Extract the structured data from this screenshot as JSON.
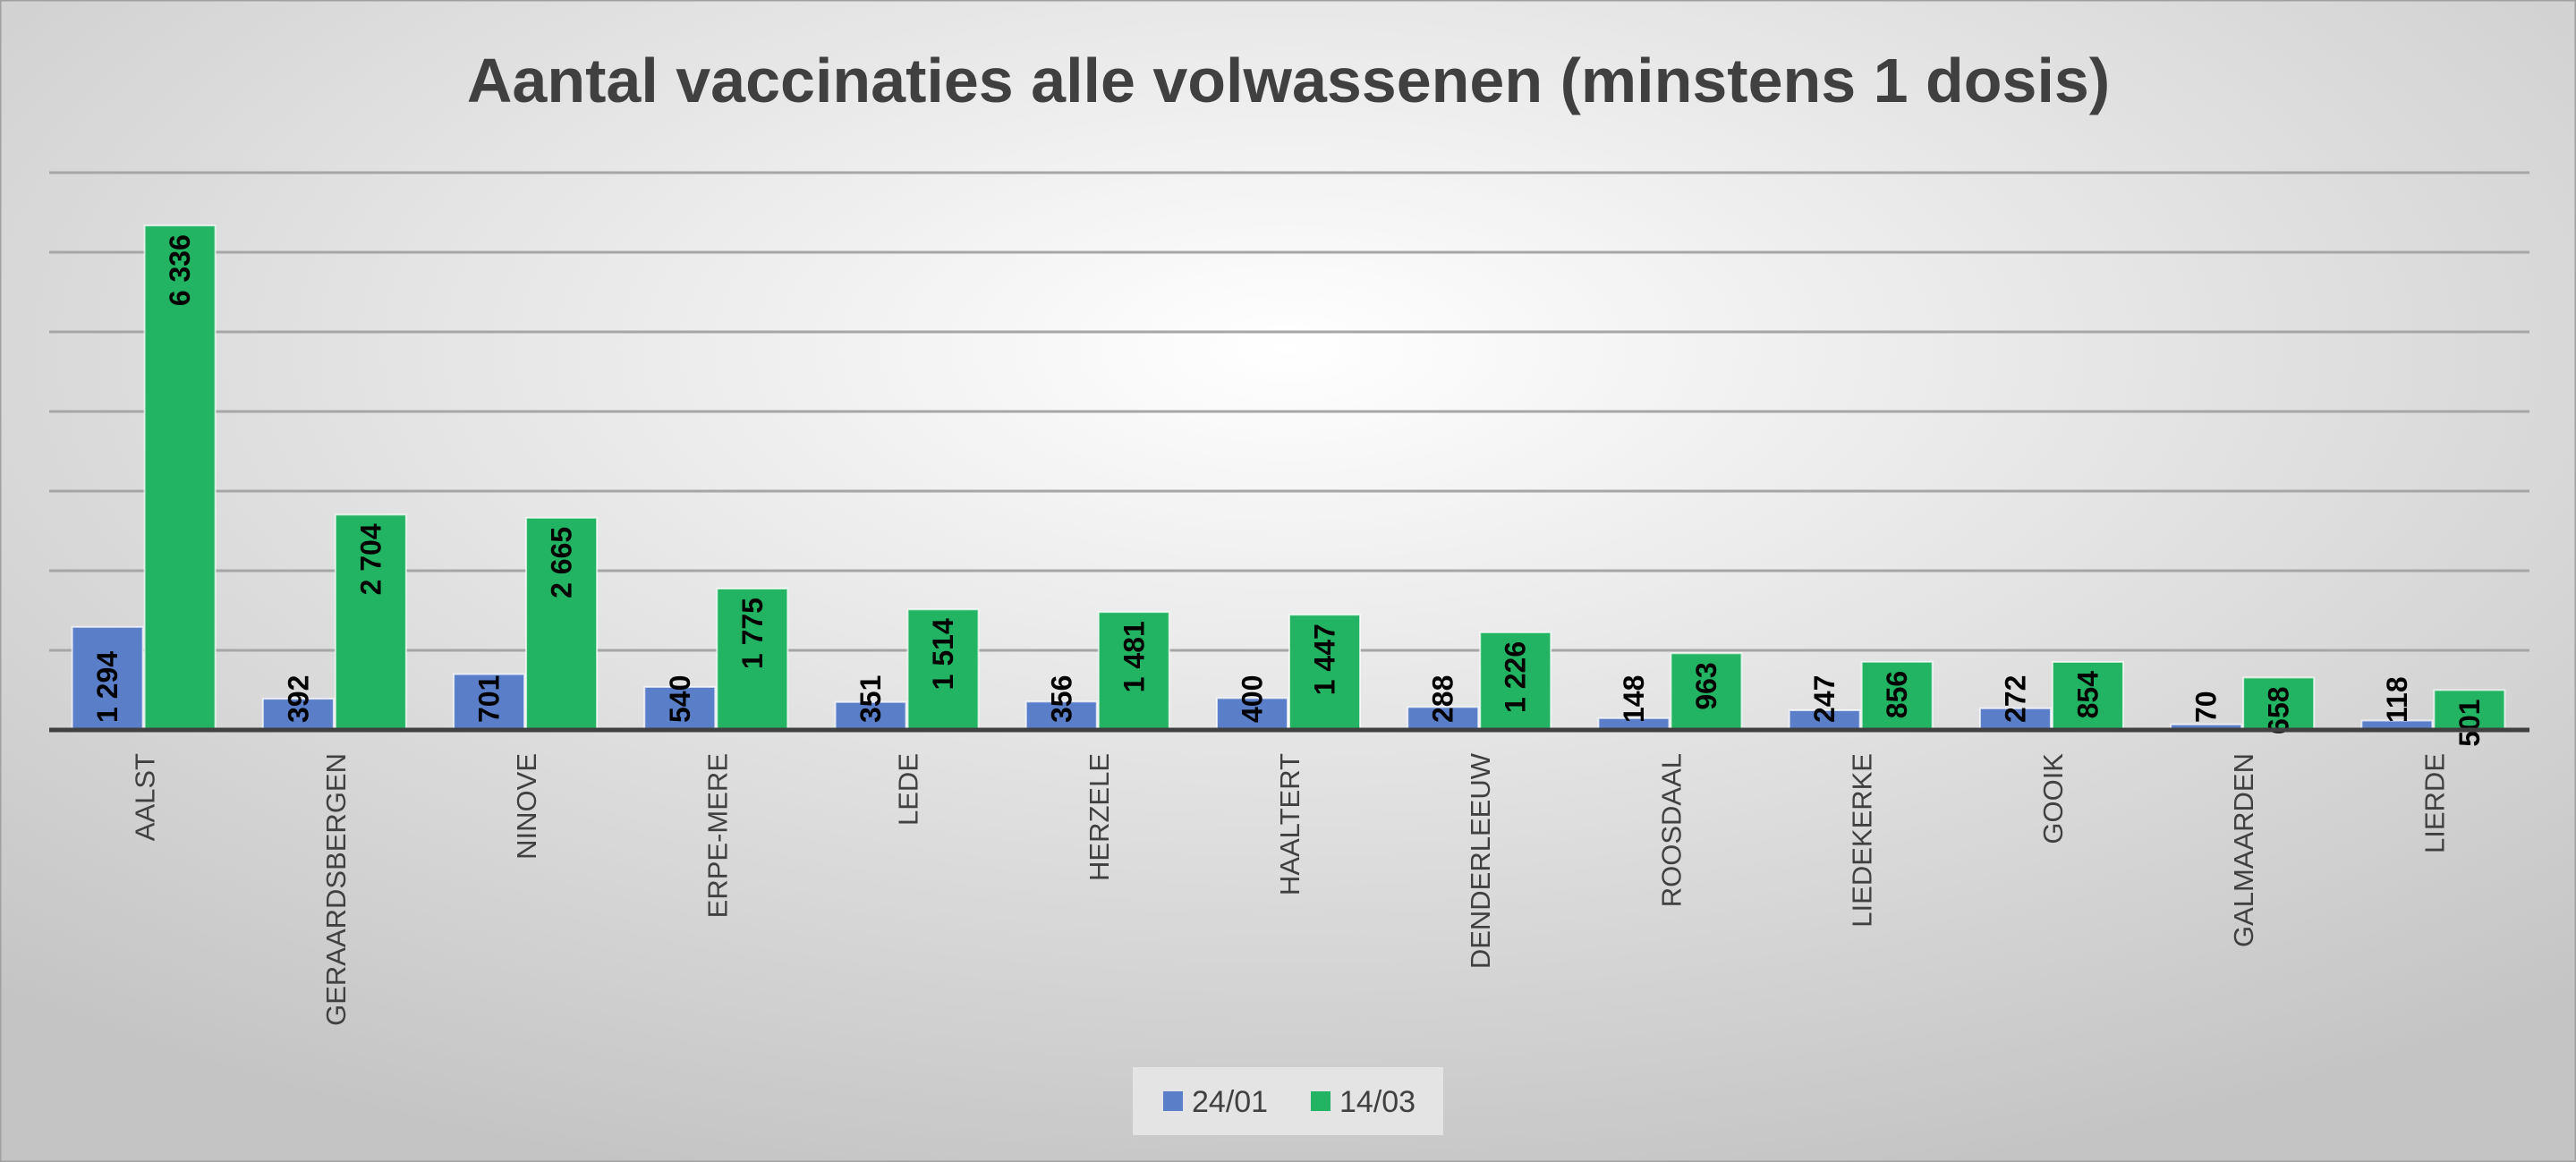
{
  "chart_data": {
    "type": "bar",
    "title": "Aantal vaccinaties alle volwassenen (minstens 1 dosis)",
    "xlabel": "",
    "ylabel": "",
    "ylim": [
      0,
      7000
    ],
    "grid": true,
    "gridStep": 1000,
    "legend_position": "bottom",
    "categories": [
      "AALST",
      "GERAARDSBERGEN",
      "NINOVE",
      "ERPE-MERE",
      "LEDE",
      "HERZELE",
      "HAALTERT",
      "DENDERLEEUW",
      "ROOSDAAL",
      "LIEDEKERKE",
      "GOOIK",
      "GALMAARDEN",
      "LIERDE"
    ],
    "series": [
      {
        "name": "24/01",
        "color": "#5a7fc8",
        "values": [
          1294,
          392,
          701,
          540,
          351,
          356,
          400,
          288,
          148,
          247,
          272,
          70,
          118
        ],
        "labels": [
          "1 294",
          "392",
          "701",
          "540",
          "351",
          "356",
          "400",
          "288",
          "148",
          "247",
          "272",
          "70",
          "118"
        ]
      },
      {
        "name": "14/03",
        "color": "#22b462",
        "values": [
          6336,
          2704,
          2665,
          1775,
          1514,
          1481,
          1447,
          1226,
          963,
          856,
          854,
          658,
          501
        ],
        "labels": [
          "6 336",
          "2 704",
          "2 665",
          "1 775",
          "1 514",
          "1 481",
          "1 447",
          "1 226",
          "963",
          "856",
          "854",
          "658",
          "501"
        ]
      }
    ]
  }
}
